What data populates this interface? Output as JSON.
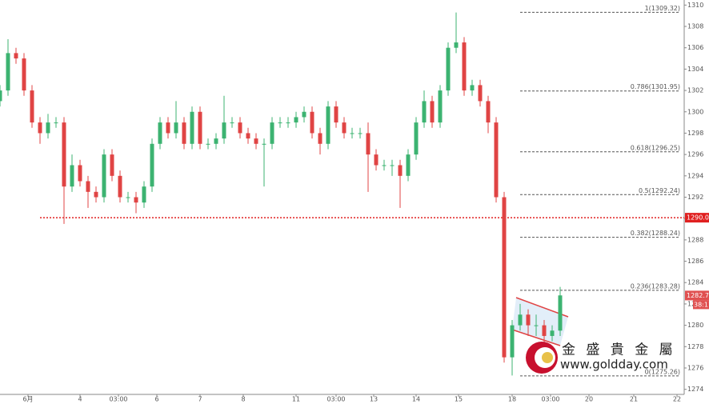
{
  "chart_data": {
    "type": "candlestick",
    "x": [
      0,
      2,
      4,
      6,
      8,
      10,
      12,
      14,
      16,
      18,
      20,
      22,
      24,
      26,
      28,
      30,
      32,
      34,
      36,
      38,
      40,
      42,
      44,
      46,
      48,
      50,
      52,
      54,
      56,
      58,
      60,
      62,
      64,
      66,
      68,
      70,
      72,
      74,
      76,
      78,
      80,
      82,
      84,
      86,
      88,
      90,
      92,
      94,
      96,
      98,
      100,
      102,
      104,
      106,
      108,
      110,
      112,
      114,
      116,
      118,
      120,
      122,
      124,
      126,
      128,
      130,
      132,
      134,
      136,
      138,
      140
    ],
    "open": [
      1301,
      1302,
      1305.5,
      1305,
      1302,
      1299,
      1298,
      1299,
      1299,
      1293,
      1295,
      1293.5,
      1292.5,
      1292,
      1296,
      1294,
      1292,
      1292,
      1291.5,
      1293,
      1297,
      1299,
      1298,
      1299,
      1297,
      1300,
      1297,
      1297,
      1297.5,
      1299,
      1299,
      1298,
      1297.5,
      1297,
      1297,
      1299,
      1299,
      1299,
      1299.5,
      1300,
      1298,
      1297,
      1300.5,
      1299,
      1298,
      1298,
      1298,
      1296,
      1295,
      1295,
      1295,
      1294,
      1296,
      1299,
      1301,
      1299,
      1302,
      1306,
      1306.5,
      1302,
      1302.5,
      1301,
      1299,
      1292,
      1277,
      1280,
      1281,
      1280,
      1280,
      1279,
      1279.5
    ],
    "high": [
      1302.5,
      1306.8,
      1306,
      1305.5,
      1302.5,
      1299.5,
      1299.8,
      1299.5,
      1299.5,
      1296,
      1295.5,
      1294,
      1293,
      1296.5,
      1296.5,
      1294.5,
      1292.5,
      1292.5,
      1293.5,
      1297.5,
      1299.5,
      1299.5,
      1301,
      1299.5,
      1300.5,
      1300.5,
      1297.5,
      1298,
      1301.5,
      1299.5,
      1299.5,
      1298.5,
      1298,
      1297.5,
      1299.5,
      1299.5,
      1299.5,
      1300,
      1300.5,
      1300.5,
      1298.5,
      1301,
      1301,
      1299.5,
      1298.5,
      1298.5,
      1299,
      1296.5,
      1295.5,
      1295.5,
      1295.5,
      1296.5,
      1299.5,
      1302,
      1301.5,
      1302.5,
      1306.5,
      1309.3,
      1307,
      1303,
      1303,
      1301.5,
      1299.5,
      1292.5,
      1280.5,
      1282,
      1281.5,
      1281,
      1280.5,
      1280,
      1283.6
    ],
    "low": [
      1300.5,
      1301.5,
      1304.5,
      1301.5,
      1298.5,
      1297,
      1297.5,
      1298.5,
      1289.5,
      1292.5,
      1293,
      1291,
      1291.5,
      1291.5,
      1293.5,
      1291.5,
      1291.5,
      1290.5,
      1291,
      1292.5,
      1296.5,
      1297.5,
      1297.5,
      1296.5,
      1296.5,
      1296.5,
      1296.5,
      1296.5,
      1297,
      1298.5,
      1297.5,
      1297,
      1296.5,
      1293,
      1296.5,
      1298.5,
      1298.5,
      1298.5,
      1299,
      1297.5,
      1296,
      1296.5,
      1298.5,
      1297.5,
      1297.5,
      1297.5,
      1292.5,
      1294.5,
      1294.5,
      1294,
      1291,
      1293.5,
      1295.5,
      1298.5,
      1298.5,
      1298.5,
      1301.5,
      1305.5,
      1301.5,
      1301.5,
      1300.5,
      1298,
      1291.5,
      1276.5,
      1275.3,
      1279.5,
      1279,
      1279,
      1278,
      1278.5,
      1279
    ],
    "close": [
      1302,
      1305.5,
      1305,
      1302,
      1299,
      1298,
      1299,
      1299,
      1293,
      1295,
      1293.5,
      1292.5,
      1292,
      1296,
      1294,
      1292,
      1292,
      1291.5,
      1293,
      1297,
      1299,
      1298,
      1299,
      1297,
      1300,
      1297,
      1297,
      1297.5,
      1299,
      1299,
      1298,
      1297.5,
      1297,
      1297,
      1299,
      1299,
      1299,
      1299.5,
      1300,
      1298,
      1297,
      1300.5,
      1299,
      1298,
      1298,
      1298,
      1296,
      1295,
      1295,
      1295,
      1294,
      1296,
      1299,
      1301,
      1299,
      1302,
      1306,
      1306.5,
      1302,
      1302.5,
      1301,
      1299,
      1292,
      1277,
      1280,
      1281,
      1280,
      1280,
      1279,
      1279.5,
      1282.8
    ],
    "up_color": "#3cb371",
    "down_color": "#e04444",
    "xlim": [
      0,
      171
    ],
    "xticks": [
      {
        "value": 7,
        "label": "6月"
      },
      {
        "value": 20,
        "label": "4"
      },
      {
        "value": 29.6,
        "label": "03:00"
      },
      {
        "value": 39.2,
        "label": "6"
      },
      {
        "value": 50,
        "label": "7"
      },
      {
        "value": 60.8,
        "label": "8"
      },
      {
        "value": 74,
        "label": "11"
      },
      {
        "value": 84,
        "label": "03:00"
      },
      {
        "value": 93.4,
        "label": "13"
      },
      {
        "value": 104,
        "label": "14"
      },
      {
        "value": 114.6,
        "label": "15"
      },
      {
        "value": 128,
        "label": "18"
      },
      {
        "value": 137.6,
        "label": "03:00"
      },
      {
        "value": 147.2,
        "label": "20"
      },
      {
        "value": 158.4,
        "label": "21"
      },
      {
        "value": 169.2,
        "label": "22"
      }
    ],
    "ylim": [
      1273.75,
      1310.25
    ],
    "yticks": [
      1274,
      1276,
      1278,
      1280,
      1282,
      1284,
      1286,
      1288,
      1290,
      1292,
      1294,
      1296,
      1298,
      1300,
      1302,
      1304,
      1306,
      1308,
      1310
    ],
    "fib_levels": [
      {
        "value": 1309.32,
        "label": "1(1309.32)"
      },
      {
        "value": 1301.95,
        "label": "0.786(1301.95)"
      },
      {
        "value": 1296.25,
        "label": "0.618(1296.25)"
      },
      {
        "value": 1292.24,
        "label": "0.5(1292.24)"
      },
      {
        "value": 1288.24,
        "label": "0.382(1288.24)"
      },
      {
        "value": 1283.28,
        "label": "0.236(1283.28)"
      },
      {
        "value": 1275.26,
        "label": "0(1275.26)"
      }
    ],
    "reference_line": 1290.08,
    "last_price": 1282.79,
    "countdown": "38:11",
    "watermark": {
      "name": "金 盛 貴 金 屬",
      "url": "www.goldday.com"
    }
  }
}
